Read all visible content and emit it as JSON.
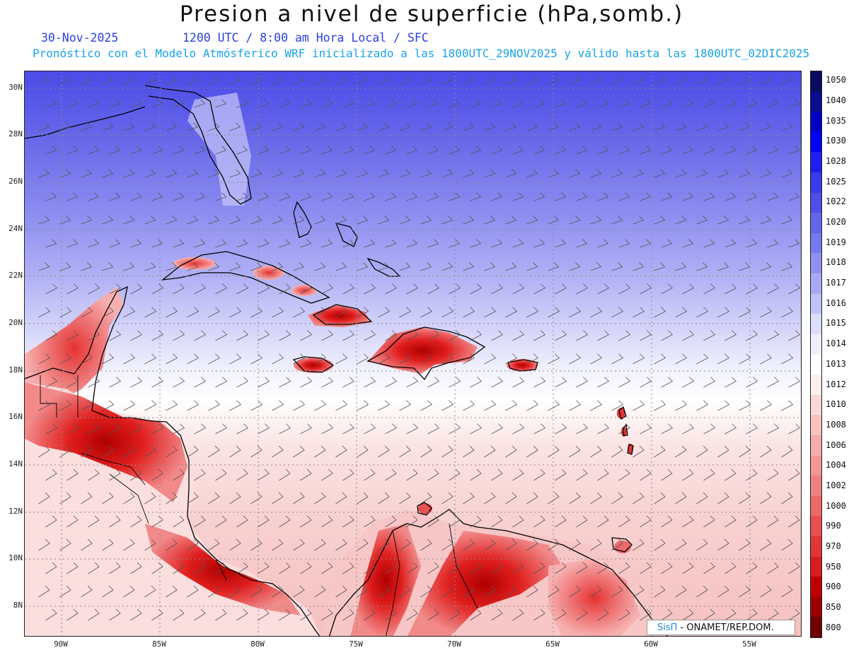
{
  "title": "Presion a nivel de superficie (hPa,somb.)",
  "date": "30-Nov-2025",
  "time_info": "1200 UTC / 8:00 am Hora Local / SFC",
  "forecast_info": "Pronóstico con el Modelo Atmósferico WRF inicializado a las 1800UTC_29NOV2025 y válido hasta las  1800UTC_02DIC2025",
  "lat_labels": [
    "30N",
    "28N",
    "26N",
    "24N",
    "22N",
    "20N",
    "18N",
    "16N",
    "14N",
    "12N",
    "10N",
    "8N"
  ],
  "lon_labels": [
    "90W",
    "85W",
    "80W",
    "75W",
    "70W",
    "65W",
    "60W",
    "55W"
  ],
  "colorbar": {
    "levels": [
      "1050",
      "1040",
      "1035",
      "1030",
      "1028",
      "1025",
      "1022",
      "1020",
      "1019",
      "1018",
      "1017",
      "1016",
      "1015",
      "1014",
      "1013",
      "1012",
      "1010",
      "1008",
      "1006",
      "1004",
      "1002",
      "1000",
      "990",
      "970",
      "950",
      "900",
      "850",
      "800"
    ],
    "colors": [
      "#0b0b5e",
      "#0c0c8f",
      "#0000c8",
      "#0000ff",
      "#1e1ef2",
      "#3a3ae8",
      "#4f4fe8",
      "#6464ea",
      "#7878ee",
      "#9090f2",
      "#a8a8f5",
      "#c2c2f8",
      "#dcdcfb",
      "#f0f0fd",
      "#ffffff",
      "#fdeeee",
      "#fbd8d8",
      "#f8c2c2",
      "#f5acac",
      "#f29696",
      "#ef8080",
      "#ec6a6a",
      "#e65050",
      "#e03636",
      "#d61e1e",
      "#c00000",
      "#9a0000",
      "#700000"
    ]
  },
  "watermark": {
    "brand": "SisΠ",
    "org": " - ONAMET/REP.DOM."
  }
}
